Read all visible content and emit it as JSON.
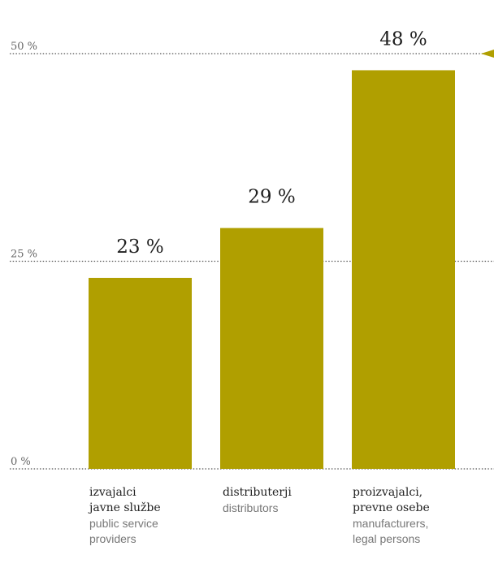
{
  "chart_data": {
    "type": "bar",
    "categories": [
      {
        "si": "izvajalci\njavne službe",
        "en": "public service\nproviders"
      },
      {
        "si": "distributerji",
        "en": "distributors"
      },
      {
        "si": "proizvajalci,\nprevne osebe",
        "en": "manufacturers,\nlegal persons"
      }
    ],
    "values": [
      23,
      29,
      48
    ],
    "value_labels": [
      "23 %",
      "29 %",
      "48 %"
    ],
    "ylim": [
      0,
      50
    ],
    "yticks": [
      0,
      25,
      50
    ],
    "ytick_labels": [
      "0 %",
      "25 %",
      "50 %"
    ],
    "grid": true,
    "bar_color": "#b09f00",
    "marker_color": "#b09f00",
    "title": "",
    "xlabel": "",
    "ylabel": ""
  }
}
